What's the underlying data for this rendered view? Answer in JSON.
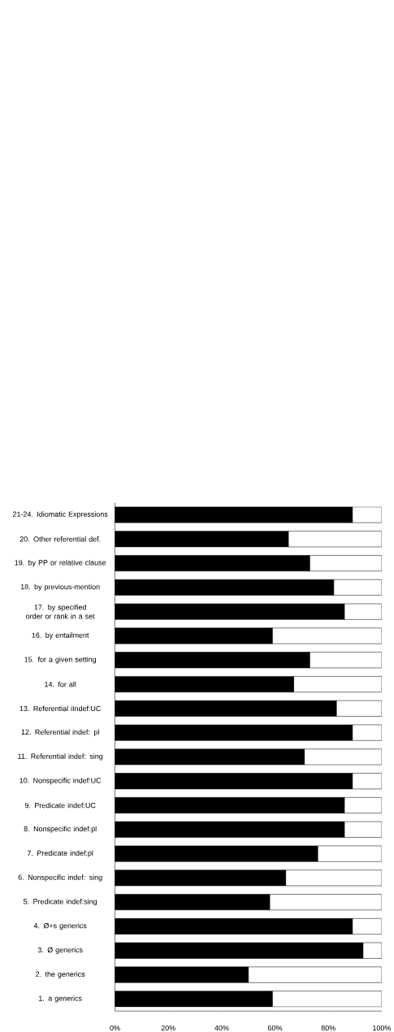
{
  "chart_data": {
    "type": "bar",
    "orientation": "horizontal",
    "stacked": true,
    "categories": [
      "21-24. Idiomatic Expressions",
      "20. Other referential def.",
      "19. by PP or relative clause",
      "18. by previous-mention",
      "17. by specified order or rank in a set",
      "16. by entailment",
      "15. for a given setting",
      "14. for all",
      "13. Referential iIndef:UC",
      "12. Referential indef: pl",
      "11. Referential indef: sing",
      "10. Nonspecific indef:UC",
      "9. Predicate indef:UC",
      "8. Nonspecific indef:pl",
      "7. Predicate indef:pl",
      "6. Nonspecific indef: sing",
      "5. Predicate indef:sing",
      "4. Ø+s generics",
      "3. Ø generics",
      "2. the generics",
      "1. a generics"
    ],
    "series": [
      {
        "color": "#000000",
        "values": [
          89,
          65,
          73,
          82,
          86,
          59,
          73,
          67,
          83,
          89,
          71,
          89,
          86,
          86,
          76,
          64,
          58,
          89,
          93,
          50,
          59
        ]
      },
      {
        "color": "#ffffff",
        "values": [
          11,
          35,
          27,
          18,
          14,
          41,
          27,
          33,
          17,
          11,
          29,
          11,
          14,
          14,
          24,
          36,
          42,
          11,
          7,
          50,
          41
        ]
      }
    ],
    "xlim": [
      0,
      100
    ],
    "xticks": [
      {
        "value": 0,
        "label": "0%"
      },
      {
        "value": 20,
        "label": "20%"
      },
      {
        "value": 40,
        "label": "40%"
      },
      {
        "value": 60,
        "label": "60%"
      },
      {
        "value": 80,
        "label": "80%"
      },
      {
        "value": 100,
        "label": "100%"
      }
    ]
  }
}
